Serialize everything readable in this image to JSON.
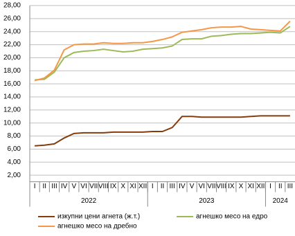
{
  "chart_data": {
    "type": "line",
    "categories": [
      "I",
      "II",
      "III",
      "IV",
      "V",
      "VI",
      "VII",
      "VIII",
      "IX",
      "X",
      "XI",
      "XII",
      "I",
      "II",
      "III",
      "IV",
      "V",
      "VI",
      "VII",
      "VIII",
      "IX",
      "X",
      "XI",
      "XII",
      "I",
      "II",
      "III"
    ],
    "year_labels": [
      "2022",
      "2023",
      "2024"
    ],
    "series": [
      {
        "name": "изкупни цени агнета (ж.т.)",
        "color": "#843c0c",
        "values": [
          6.5,
          6.6,
          6.8,
          7.7,
          8.4,
          8.5,
          8.5,
          8.5,
          8.6,
          8.6,
          8.6,
          8.6,
          8.7,
          8.7,
          9.3,
          11.0,
          11.0,
          10.9,
          10.9,
          10.9,
          10.9,
          10.9,
          11.0,
          11.1,
          11.1,
          11.1,
          11.1
        ]
      },
      {
        "name": "агнешко месо на едро",
        "color": "#9bbb59",
        "values": [
          16.6,
          16.7,
          17.8,
          20.0,
          20.8,
          21.0,
          21.1,
          21.3,
          21.1,
          20.9,
          21.0,
          21.3,
          21.4,
          21.5,
          21.8,
          22.8,
          22.9,
          22.9,
          23.3,
          23.4,
          23.6,
          23.7,
          23.7,
          23.8,
          23.9,
          23.8,
          24.8
        ]
      },
      {
        "name": "агнешко месо на дребно",
        "color": "#f79646",
        "values": [
          16.5,
          16.9,
          18.1,
          21.2,
          22.0,
          22.1,
          22.1,
          22.3,
          22.2,
          22.2,
          22.3,
          22.3,
          22.5,
          22.8,
          23.2,
          23.9,
          24.1,
          24.3,
          24.6,
          24.7,
          24.7,
          24.8,
          24.4,
          24.3,
          24.2,
          24.1,
          25.6
        ]
      }
    ],
    "ylim": [
      1,
      28
    ],
    "yticks": [
      {
        "value": 2,
        "label": "2,00"
      },
      {
        "value": 4,
        "label": "4,00"
      },
      {
        "value": 6,
        "label": "6,00"
      },
      {
        "value": 8,
        "label": "8,00"
      },
      {
        "value": 10,
        "label": "10,00"
      },
      {
        "value": 12,
        "label": "12,00"
      },
      {
        "value": 14,
        "label": "14,00"
      },
      {
        "value": 16,
        "label": "16,00"
      },
      {
        "value": 18,
        "label": "18,00"
      },
      {
        "value": 20,
        "label": "20,00"
      },
      {
        "value": 22,
        "label": "22,00"
      },
      {
        "value": 24,
        "label": "24,00"
      },
      {
        "value": 26,
        "label": "26,00"
      },
      {
        "value": 28,
        "label": "28,00"
      }
    ],
    "grid": true
  }
}
